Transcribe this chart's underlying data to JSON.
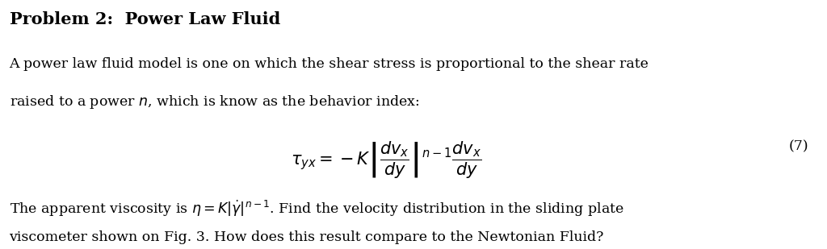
{
  "title": "Problem 2:  Power Law Fluid",
  "bg_color": "#ffffff",
  "text_color": "#000000",
  "figsize": [
    10.24,
    3.09
  ],
  "dpi": 100,
  "para1_line1": "A power law fluid model is one on which the shear stress is proportional to the shear rate",
  "para1_line2": "raised to a power $n$, which is know as the behavior index:",
  "eq_number": "(7)",
  "para2_line2": "viscometer shown on Fig. 3. How does this result compare to the Newtonian Fluid?",
  "title_fontsize": 15,
  "body_fontsize": 12.5,
  "eq_fontsize": 15
}
